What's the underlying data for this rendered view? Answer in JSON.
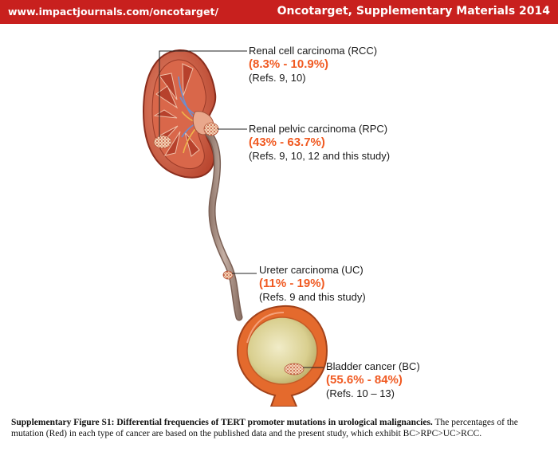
{
  "header": {
    "url": "www.impactjournals.com/oncotarget/",
    "journal": "Oncotarget, Supplementary Materials 2014",
    "color": "#c8201e"
  },
  "figure": {
    "highlight_color": "#f05a22",
    "labels": [
      {
        "id": "rcc",
        "name": "Renal cell carcinoma (RCC)",
        "percent": "(8.3% - 10.9%)",
        "refs": "(Refs. 9, 10)"
      },
      {
        "id": "rpc",
        "name": "Renal pelvic carcinoma (RPC)",
        "percent": "(43% - 63.7%)",
        "refs": "(Refs. 9, 10, 12 and this study)"
      },
      {
        "id": "uc",
        "name": "Ureter carcinoma (UC)",
        "percent": "(11% - 19%)",
        "refs": "(Refs. 9 and this study)"
      },
      {
        "id": "bc",
        "name": "Bladder cancer (BC)",
        "percent": "(55.6% - 84%)",
        "refs": "(Refs. 10 – 13)"
      }
    ]
  },
  "caption": {
    "title": "Supplementary Figure S1: Differential frequencies of TERT promoter mutations in urological malignancies.",
    "text": " The percentages of the mutation (Red) in each type of cancer are based on the published data and the present study, which exhibit BC>RPC>UC>RCC."
  }
}
